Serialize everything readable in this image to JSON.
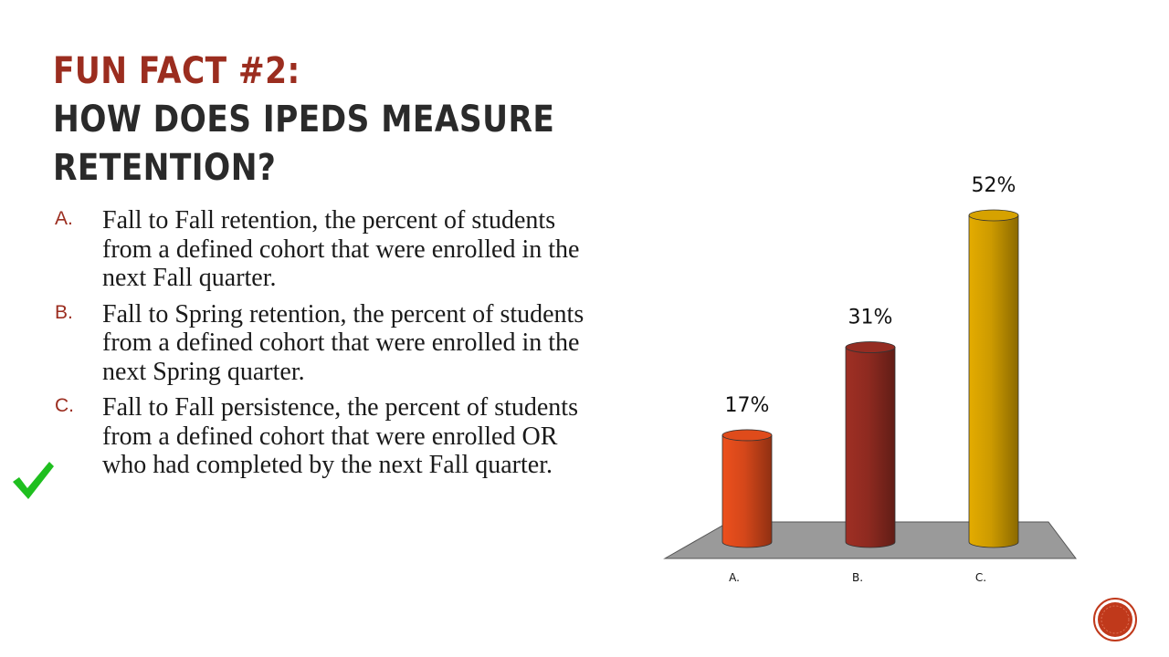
{
  "slide": {
    "title_line1": "Fun Fact #2:",
    "title_line2": "How does IPEDS measure",
    "title_line3": "retention?"
  },
  "options": [
    {
      "letter": "A.",
      "text": "Fall to Fall retention, the percent of students from a defined cohort that were enrolled in the next Fall quarter."
    },
    {
      "letter": "B.",
      "text": "Fall to Spring retention, the percent of students from a defined cohort that were enrolled in the next Spring quarter."
    },
    {
      "letter": "C.",
      "text": "Fall to Fall persistence, the percent of students from a defined cohort that were enrolled OR who had completed by the next Fall quarter."
    }
  ],
  "correct_marker": {
    "icon": "checkmark-icon",
    "color": "#1fbf1f",
    "option": "C."
  },
  "chart_data": {
    "type": "bar",
    "style": "3d-cylinder",
    "categories": [
      "A.",
      "B.",
      "C."
    ],
    "values": [
      17,
      31,
      52
    ],
    "data_labels": [
      "17%",
      "31%",
      "52%"
    ],
    "colors": [
      "#d4471a",
      "#8e2a20",
      "#cc9a00"
    ],
    "ylim": [
      0,
      52
    ],
    "grid": false,
    "floor_color": "#9a9a9a"
  },
  "nav": {
    "icon": "next-slide-icon",
    "color": "#c0391b"
  }
}
